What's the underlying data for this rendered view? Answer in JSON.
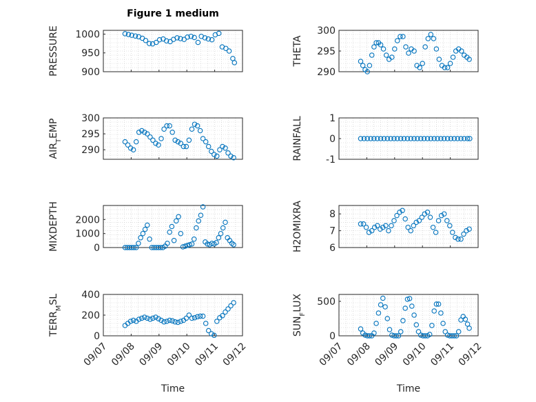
{
  "figure": {
    "title": "Figure 1 medium",
    "xlabel": "Time",
    "marker_color": "#0072BD",
    "grid": "minor dotted"
  },
  "chart_data": [
    {
      "type": "scatter",
      "ylabel": "PRESSURE",
      "ylim": [
        900,
        1010
      ],
      "yticks": [
        900,
        950,
        1000
      ],
      "xlim": [
        0,
        5
      ],
      "xticks": [],
      "grid": true,
      "x": [
        0.78,
        0.9,
        1.02,
        1.15,
        1.27,
        1.4,
        1.52,
        1.65,
        1.77,
        1.9,
        2.02,
        2.15,
        2.27,
        2.4,
        2.52,
        2.65,
        2.77,
        2.9,
        3.02,
        3.15,
        3.27,
        3.4,
        3.52,
        3.65,
        3.77,
        3.9,
        4.02,
        4.15,
        4.27,
        4.4,
        4.52,
        4.65,
        4.71
      ],
      "y": [
        1001,
        999,
        997,
        995,
        993,
        989,
        983,
        975,
        974,
        978,
        985,
        987,
        982,
        980,
        986,
        990,
        988,
        986,
        992,
        994,
        991,
        978,
        994,
        990,
        987,
        985,
        998,
        1002,
        966,
        962,
        955,
        935,
        924
      ]
    },
    {
      "type": "scatter",
      "ylabel": "THETA",
      "ylim": [
        290,
        300
      ],
      "yticks": [
        290,
        295,
        300
      ],
      "xlim": [
        0,
        5
      ],
      "xticks": [],
      "grid": true,
      "x": [
        0.78,
        0.86,
        0.94,
        1.02,
        1.1,
        1.18,
        1.26,
        1.34,
        1.42,
        1.5,
        1.6,
        1.7,
        1.8,
        1.9,
        2.0,
        2.1,
        2.2,
        2.3,
        2.4,
        2.5,
        2.6,
        2.7,
        2.8,
        2.9,
        3.0,
        3.1,
        3.2,
        3.3,
        3.4,
        3.5,
        3.6,
        3.7,
        3.8,
        3.9,
        4.0,
        4.1,
        4.2,
        4.3,
        4.4,
        4.5,
        4.6,
        4.68
      ],
      "y": [
        292.5,
        291.5,
        290.5,
        290.0,
        291.5,
        294.0,
        296.0,
        297.0,
        297.0,
        296.5,
        295.5,
        294.0,
        293.0,
        293.5,
        295.5,
        297.5,
        298.5,
        298.5,
        296.0,
        294.5,
        295.5,
        295.0,
        291.5,
        291.0,
        292.0,
        296.0,
        298.0,
        299.0,
        298.0,
        295.5,
        293.0,
        291.5,
        291.0,
        291.0,
        292.0,
        293.5,
        295.0,
        295.5,
        295.0,
        294.0,
        293.5,
        293.0
      ]
    },
    {
      "type": "scatter",
      "ylabel": "AIR_TEMP",
      "ylim": [
        287,
        300
      ],
      "yticks": [
        290,
        295,
        300
      ],
      "xlim": [
        0,
        5
      ],
      "xticks": [],
      "grid": true,
      "x": [
        0.78,
        0.88,
        0.98,
        1.08,
        1.18,
        1.28,
        1.38,
        1.48,
        1.58,
        1.68,
        1.78,
        1.88,
        1.98,
        2.08,
        2.18,
        2.28,
        2.38,
        2.48,
        2.58,
        2.68,
        2.78,
        2.88,
        2.98,
        3.08,
        3.18,
        3.28,
        3.38,
        3.48,
        3.58,
        3.68,
        3.78,
        3.88,
        3.98,
        4.08,
        4.18,
        4.28,
        4.38,
        4.48,
        4.58,
        4.68
      ],
      "y": [
        292.5,
        291.5,
        290.5,
        290.0,
        292.5,
        295.5,
        296.0,
        295.5,
        295.0,
        294.0,
        293.0,
        292.0,
        291.5,
        293.5,
        296.5,
        297.5,
        297.5,
        295.5,
        293.0,
        292.5,
        292.0,
        291.0,
        291.0,
        293.0,
        296.5,
        298.0,
        297.5,
        296.0,
        293.5,
        292.5,
        291.0,
        289.5,
        288.5,
        288.0,
        290.0,
        291.0,
        290.5,
        289.0,
        288.0,
        287.5
      ]
    },
    {
      "type": "scatter",
      "ylabel": "RAINFALL",
      "ylim": [
        -1,
        1
      ],
      "yticks": [
        -1,
        0,
        1
      ],
      "xlim": [
        0,
        5
      ],
      "xticks": [],
      "grid": true,
      "x": [
        0.78,
        0.9,
        1.02,
        1.14,
        1.26,
        1.38,
        1.5,
        1.62,
        1.74,
        1.86,
        1.98,
        2.1,
        2.22,
        2.34,
        2.46,
        2.58,
        2.7,
        2.82,
        2.94,
        3.06,
        3.18,
        3.3,
        3.42,
        3.54,
        3.66,
        3.78,
        3.9,
        4.02,
        4.14,
        4.26,
        4.38,
        4.5,
        4.62,
        4.7
      ],
      "y": [
        0,
        0,
        0,
        0,
        0,
        0,
        0,
        0,
        0,
        0,
        0,
        0,
        0,
        0,
        0,
        0,
        0,
        0,
        0,
        0,
        0,
        0,
        0,
        0,
        0,
        0,
        0,
        0,
        0,
        0,
        0,
        0,
        0,
        0
      ]
    },
    {
      "type": "scatter",
      "ylabel": "MIXDEPTH",
      "ylim": [
        0,
        3000
      ],
      "yticks": [
        0,
        1000,
        2000
      ],
      "xlim": [
        0,
        5
      ],
      "xticks": [],
      "grid": true,
      "x": [
        0.78,
        0.86,
        0.94,
        1.02,
        1.1,
        1.18,
        1.26,
        1.34,
        1.42,
        1.5,
        1.58,
        1.66,
        1.74,
        1.82,
        1.9,
        1.98,
        2.06,
        2.14,
        2.22,
        2.3,
        2.38,
        2.46,
        2.54,
        2.62,
        2.7,
        2.78,
        2.86,
        2.94,
        3.02,
        3.1,
        3.18,
        3.26,
        3.34,
        3.42,
        3.5,
        3.58,
        3.66,
        3.74,
        3.82,
        3.9,
        3.98,
        4.06,
        4.14,
        4.22,
        4.3,
        4.38,
        4.46,
        4.54,
        4.62,
        4.68
      ],
      "y": [
        0,
        0,
        0,
        0,
        0,
        0,
        300,
        700,
        1000,
        1300,
        1600,
        600,
        0,
        0,
        0,
        0,
        0,
        0,
        100,
        300,
        1100,
        1500,
        500,
        1900,
        2200,
        1000,
        50,
        100,
        150,
        200,
        250,
        600,
        1400,
        1900,
        2300,
        2900,
        400,
        250,
        200,
        300,
        250,
        350,
        700,
        1000,
        1400,
        1800,
        700,
        500,
        300,
        200
      ]
    },
    {
      "type": "scatter",
      "ylabel": "H2OMIXRA",
      "ylim": [
        6,
        8.5
      ],
      "yticks": [
        6,
        7,
        8
      ],
      "xlim": [
        0,
        5
      ],
      "xticks": [],
      "grid": true,
      "x": [
        0.78,
        0.88,
        0.98,
        1.08,
        1.18,
        1.28,
        1.38,
        1.48,
        1.58,
        1.68,
        1.78,
        1.88,
        1.98,
        2.08,
        2.18,
        2.28,
        2.38,
        2.48,
        2.58,
        2.68,
        2.78,
        2.88,
        2.98,
        3.08,
        3.18,
        3.28,
        3.38,
        3.48,
        3.58,
        3.68,
        3.78,
        3.88,
        3.98,
        4.08,
        4.18,
        4.28,
        4.38,
        4.48,
        4.58,
        4.68
      ],
      "y": [
        7.4,
        7.4,
        7.2,
        6.9,
        7.0,
        7.2,
        7.3,
        7.1,
        7.2,
        7.3,
        7.0,
        7.3,
        7.6,
        7.9,
        8.1,
        8.2,
        7.7,
        7.2,
        7.0,
        7.3,
        7.5,
        7.6,
        7.8,
        8.0,
        8.1,
        7.8,
        7.2,
        6.9,
        7.6,
        7.9,
        8.0,
        7.6,
        7.3,
        6.9,
        6.6,
        6.5,
        6.5,
        6.8,
        7.0,
        7.1
      ]
    },
    {
      "type": "scatter",
      "ylabel": "TERR_MSL",
      "ylim": [
        0,
        400
      ],
      "yticks": [
        0,
        200,
        400
      ],
      "xlim": [
        0,
        5
      ],
      "xticks": [
        "09/07",
        "09/08",
        "09/09",
        "09/10",
        "09/11",
        "09/12"
      ],
      "grid": true,
      "x": [
        0.78,
        0.88,
        0.98,
        1.08,
        1.18,
        1.28,
        1.38,
        1.48,
        1.58,
        1.68,
        1.78,
        1.88,
        1.98,
        2.08,
        2.18,
        2.28,
        2.38,
        2.48,
        2.58,
        2.68,
        2.78,
        2.88,
        2.98,
        3.08,
        3.18,
        3.28,
        3.38,
        3.48,
        3.58,
        3.68,
        3.78,
        3.88,
        3.98,
        4.08,
        4.18,
        4.28,
        4.38,
        4.48,
        4.58,
        4.68
      ],
      "y": [
        100,
        120,
        140,
        150,
        140,
        160,
        170,
        180,
        170,
        160,
        170,
        180,
        165,
        150,
        135,
        140,
        150,
        145,
        135,
        130,
        140,
        150,
        170,
        200,
        170,
        175,
        185,
        190,
        190,
        120,
        50,
        20,
        5,
        140,
        175,
        195,
        230,
        260,
        290,
        320
      ]
    },
    {
      "type": "scatter",
      "ylabel": "SUN_FLUX",
      "ylim": [
        0,
        600
      ],
      "yticks": [
        0,
        500
      ],
      "xlim": [
        0,
        5
      ],
      "xticks": [
        "09/07",
        "09/08",
        "09/09",
        "09/10",
        "09/11",
        "09/12"
      ],
      "grid": true,
      "x": [
        0.78,
        0.86,
        0.94,
        1.02,
        1.1,
        1.18,
        1.26,
        1.34,
        1.42,
        1.5,
        1.58,
        1.66,
        1.74,
        1.82,
        1.9,
        1.98,
        2.06,
        2.14,
        2.22,
        2.3,
        2.38,
        2.46,
        2.54,
        2.62,
        2.7,
        2.78,
        2.86,
        2.94,
        3.02,
        3.1,
        3.18,
        3.26,
        3.34,
        3.42,
        3.5,
        3.58,
        3.66,
        3.74,
        3.82,
        3.9,
        3.98,
        4.06,
        4.14,
        4.22,
        4.3,
        4.38,
        4.46,
        4.54,
        4.62,
        4.68
      ],
      "y": [
        100,
        40,
        10,
        0,
        0,
        0,
        40,
        180,
        330,
        450,
        545,
        420,
        250,
        90,
        10,
        0,
        0,
        0,
        60,
        220,
        400,
        530,
        540,
        430,
        300,
        160,
        60,
        10,
        0,
        0,
        0,
        20,
        150,
        360,
        460,
        460,
        330,
        180,
        60,
        10,
        0,
        0,
        0,
        0,
        60,
        230,
        280,
        240,
        170,
        110
      ]
    }
  ]
}
